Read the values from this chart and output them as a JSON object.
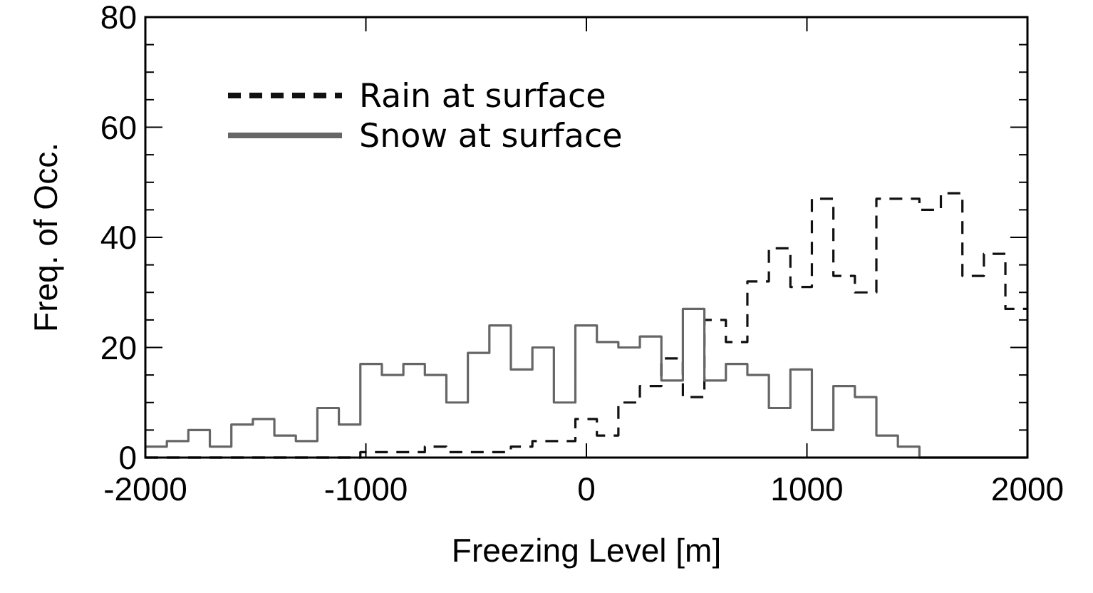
{
  "chart_data": {
    "type": "histogram",
    "xlabel": "Freezing Level [m]",
    "ylabel": "Freq. of Occ.",
    "bins": [
      -2000,
      -1902.5,
      -1805,
      -1707.5,
      -1610,
      -1512.5,
      -1415,
      -1317.5,
      -1220,
      -1122.5,
      -1025,
      -927.5,
      -830,
      -732.5,
      -635,
      -537.5,
      -440,
      -342.5,
      -245,
      -147.5,
      -50,
      47.5,
      145,
      242.5,
      340,
      437.5,
      535,
      632.5,
      730,
      827.5,
      925,
      1022.5,
      1120,
      1217.5,
      1315,
      1412.5,
      1510,
      1607.5,
      1705,
      1802.5,
      1900,
      1997.5
    ],
    "series": [
      {
        "name": "Rain at surface",
        "color": "#111111",
        "line_style": "dashed",
        "values": [
          0,
          0,
          0,
          0,
          0,
          0,
          0,
          0,
          0,
          0,
          1,
          1,
          1,
          2,
          1,
          1,
          1,
          2,
          3,
          3,
          7,
          4,
          10,
          13,
          18,
          11,
          25,
          21,
          32,
          38,
          31,
          47,
          33,
          30,
          47,
          47,
          45,
          48,
          33,
          37,
          27
        ]
      },
      {
        "name": "Snow at surface",
        "color": "#666666",
        "line_style": "solid",
        "values": [
          2,
          3,
          5,
          2,
          6,
          7,
          4,
          3,
          9,
          6,
          17,
          15,
          17,
          15,
          10,
          19,
          24,
          16,
          20,
          10,
          24,
          21,
          20,
          22,
          14,
          27,
          14,
          17,
          15,
          9,
          16,
          5,
          13,
          11,
          4,
          2,
          0,
          0,
          0,
          0,
          0
        ]
      }
    ],
    "xlim": [
      -2000,
      2000
    ],
    "xticks": [
      -2000,
      -1000,
      0,
      1000,
      2000
    ],
    "ylim": [
      0,
      80
    ],
    "yticks": [
      0,
      {
        "value": 5,
        "label": null
      },
      {
        "value": 10,
        "label": null
      },
      {
        "value": 15,
        "label": null
      },
      20,
      {
        "value": 25,
        "label": null
      },
      {
        "value": 30,
        "label": null
      },
      {
        "value": 35,
        "label": null
      },
      40,
      {
        "value": 45,
        "label": null
      },
      {
        "value": 50,
        "label": null
      },
      {
        "value": 55,
        "label": null
      },
      60,
      {
        "value": 65,
        "label": null
      },
      {
        "value": 70,
        "label": null
      },
      {
        "value": 75,
        "label": null
      },
      80
    ],
    "legend": "top left",
    "grid": false
  }
}
